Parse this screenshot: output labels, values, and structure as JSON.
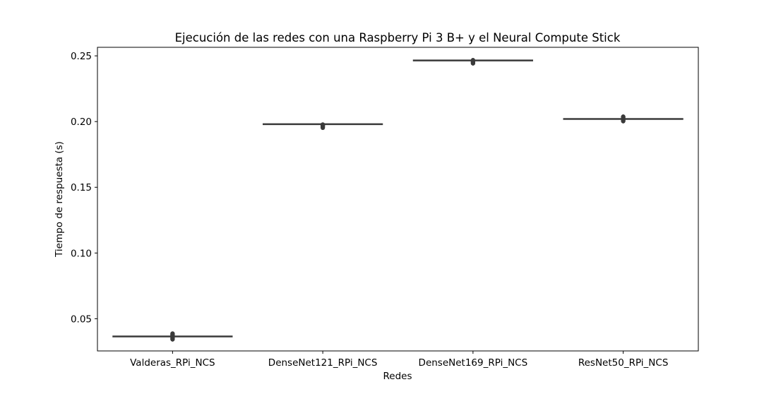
{
  "chart_data": {
    "type": "boxplot",
    "title": "Ejecución de las redes con una Raspberry Pi 3 B+ y el Neural Compute Stick",
    "xlabel": "Redes",
    "ylabel": "Tiempo de respuesta (s)",
    "categories": [
      "Valderas_RPi_NCS",
      "DenseNet121_RPi_NCS",
      "DenseNet169_RPi_NCS",
      "ResNet50_RPi_NCS"
    ],
    "values": [
      0.0365,
      0.198,
      0.2465,
      0.202
    ],
    "outliers": [
      [
        0.0345,
        0.0355,
        0.0375,
        0.0385
      ],
      [
        0.1955,
        0.1965,
        0.1975
      ],
      [
        0.2445,
        0.2455,
        0.2465
      ],
      [
        0.2005,
        0.2015,
        0.2025,
        0.2035
      ]
    ],
    "ylim": [
      0.0255,
      0.2565
    ],
    "yticks": [
      "0.05",
      "0.10",
      "0.15",
      "0.20",
      "0.25"
    ],
    "grid": false,
    "box_color": "#3a3a3a"
  }
}
